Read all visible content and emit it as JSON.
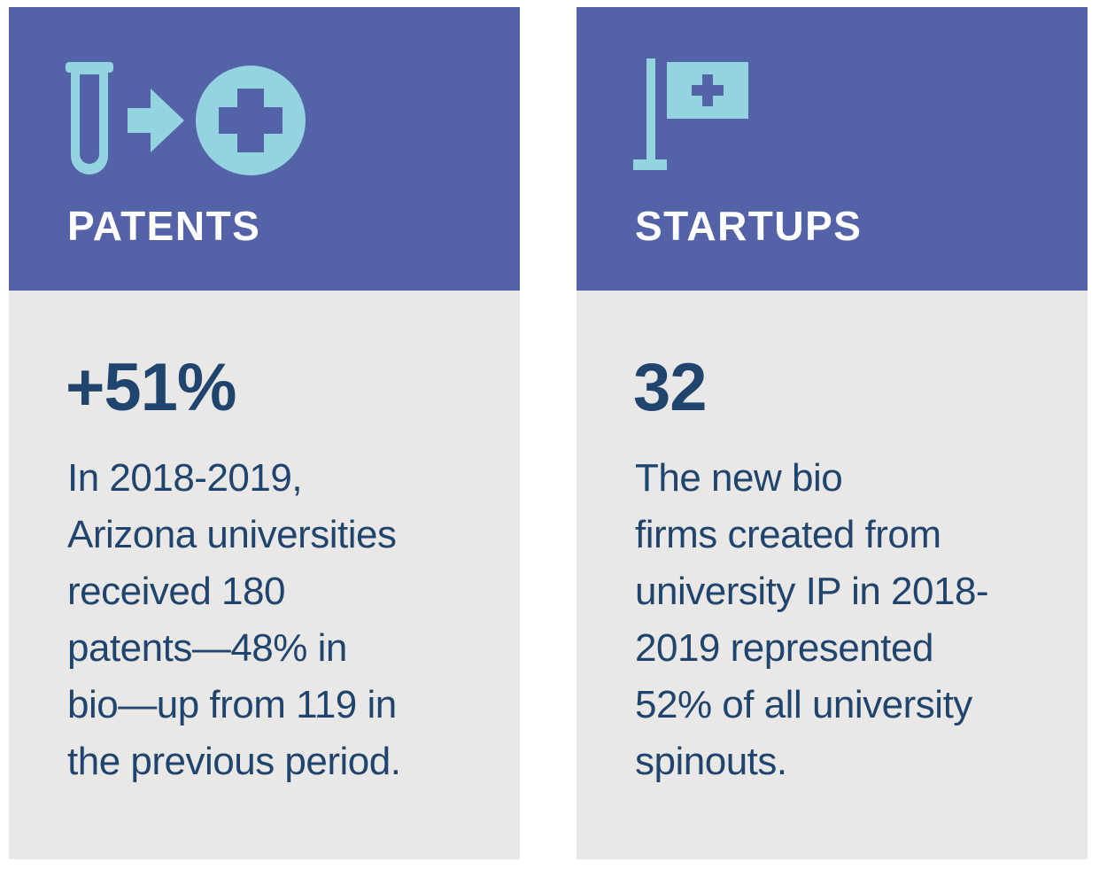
{
  "colors": {
    "header_bg": "#5463a8",
    "card_bg": "#eae8e7",
    "icon_color": "#94d4e1",
    "text_color": "#1f456e",
    "title_color": "#ffffff"
  },
  "cards": [
    {
      "icon": "test-tube-arrow-medical-cross-icon",
      "title": "PATENTS",
      "stat": "+51%",
      "description_lines": [
        "In 2018-2019,",
        "Arizona universities",
        "received 180",
        "patents—48% in",
        "bio—up from 119 in",
        "the previous period."
      ]
    },
    {
      "icon": "medical-flag-icon",
      "title": "STARTUPS",
      "stat": "32",
      "description_lines": [
        "The new bio",
        "firms created from",
        "university IP in 2018-",
        "2019 represented",
        "52% of all university",
        "spinouts."
      ]
    }
  ]
}
